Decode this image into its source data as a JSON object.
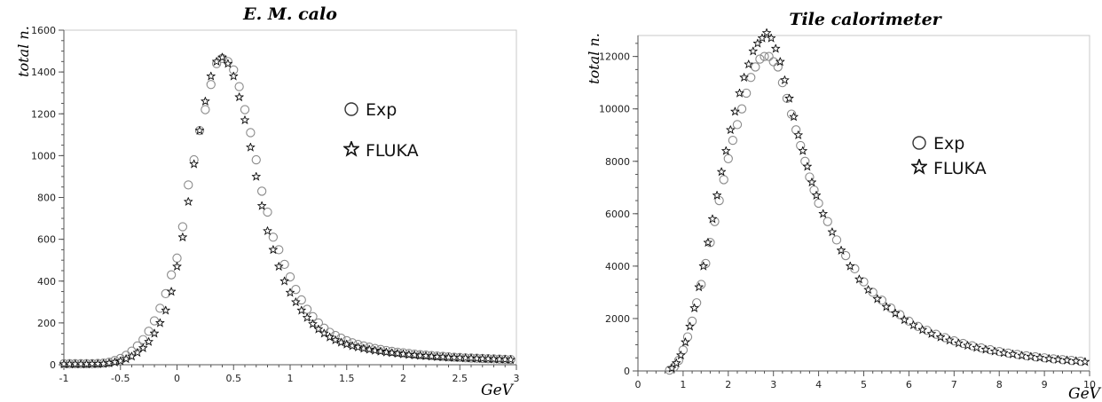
{
  "chart_data": [
    {
      "type": "scatter",
      "title": "E. M. calo",
      "xlabel": "GeV",
      "ylabel": "total n.",
      "xlim": [
        -1,
        3
      ],
      "ylim": [
        0,
        1600
      ],
      "xticks": [
        "-1",
        "-0.5",
        "0",
        "0.5",
        "1",
        "1.5",
        "2",
        "2.5",
        "3"
      ],
      "yticks": [
        "0",
        "200",
        "400",
        "600",
        "800",
        "1000",
        "1200",
        "1400",
        "1600"
      ],
      "legend_position": "right",
      "series": [
        {
          "name": "Exp",
          "marker": "circle",
          "x": [
            -1.0,
            -0.95,
            -0.9,
            -0.85,
            -0.8,
            -0.75,
            -0.7,
            -0.65,
            -0.6,
            -0.55,
            -0.5,
            -0.45,
            -0.4,
            -0.35,
            -0.3,
            -0.25,
            -0.2,
            -0.15,
            -0.1,
            -0.05,
            0.0,
            0.05,
            0.1,
            0.15,
            0.2,
            0.25,
            0.3,
            0.35,
            0.4,
            0.45,
            0.5,
            0.55,
            0.6,
            0.65,
            0.7,
            0.75,
            0.8,
            0.85,
            0.9,
            0.95,
            1.0,
            1.05,
            1.1,
            1.15,
            1.2,
            1.25,
            1.3,
            1.35,
            1.4,
            1.45,
            1.5,
            1.55,
            1.6,
            1.65,
            1.7,
            1.75,
            1.8,
            1.85,
            1.9,
            1.95,
            2.0,
            2.05,
            2.1,
            2.15,
            2.2,
            2.25,
            2.3,
            2.35,
            2.4,
            2.45,
            2.5,
            2.55,
            2.6,
            2.65,
            2.7,
            2.75,
            2.8,
            2.85,
            2.9,
            2.95
          ],
          "y": [
            5,
            5,
            5,
            5,
            5,
            5,
            6,
            8,
            12,
            20,
            30,
            45,
            65,
            90,
            120,
            160,
            210,
            270,
            340,
            430,
            510,
            660,
            860,
            980,
            1120,
            1220,
            1340,
            1440,
            1465,
            1450,
            1410,
            1330,
            1220,
            1110,
            980,
            830,
            730,
            610,
            550,
            480,
            420,
            360,
            310,
            265,
            230,
            200,
            175,
            155,
            140,
            127,
            115,
            105,
            97,
            90,
            84,
            78,
            73,
            68,
            64,
            60,
            57,
            54,
            51,
            48,
            46,
            44,
            42,
            40,
            38,
            36,
            35,
            33,
            32,
            31,
            30,
            29,
            28,
            27,
            26,
            25
          ]
        },
        {
          "name": "FLUKA",
          "marker": "star",
          "x": [
            -1.0,
            -0.95,
            -0.9,
            -0.85,
            -0.8,
            -0.75,
            -0.7,
            -0.65,
            -0.6,
            -0.55,
            -0.5,
            -0.45,
            -0.4,
            -0.35,
            -0.3,
            -0.25,
            -0.2,
            -0.15,
            -0.1,
            -0.05,
            0.0,
            0.05,
            0.1,
            0.15,
            0.2,
            0.25,
            0.3,
            0.35,
            0.4,
            0.45,
            0.5,
            0.55,
            0.6,
            0.65,
            0.7,
            0.75,
            0.8,
            0.85,
            0.9,
            0.95,
            1.0,
            1.05,
            1.1,
            1.15,
            1.2,
            1.25,
            1.3,
            1.35,
            1.4,
            1.45,
            1.5,
            1.55,
            1.6,
            1.65,
            1.7,
            1.75,
            1.8,
            1.85,
            1.9,
            1.95,
            2.0,
            2.05,
            2.1,
            2.15,
            2.2,
            2.25,
            2.3,
            2.35,
            2.4,
            2.45,
            2.5,
            2.55,
            2.6,
            2.65,
            2.7,
            2.75,
            2.8,
            2.85,
            2.9,
            2.95
          ],
          "y": [
            3,
            3,
            3,
            3,
            3,
            4,
            4,
            5,
            8,
            12,
            18,
            28,
            40,
            58,
            80,
            110,
            150,
            200,
            260,
            350,
            470,
            610,
            780,
            960,
            1120,
            1260,
            1380,
            1450,
            1470,
            1440,
            1380,
            1280,
            1170,
            1040,
            900,
            760,
            640,
            550,
            470,
            400,
            345,
            300,
            260,
            225,
            195,
            170,
            150,
            132,
            118,
            107,
            98,
            90,
            84,
            78,
            73,
            68,
            64,
            60,
            57,
            54,
            51,
            48,
            46,
            44,
            42,
            40,
            38,
            37,
            35,
            34,
            33,
            32,
            31,
            30,
            29,
            28,
            27,
            26,
            25,
            24
          ]
        }
      ]
    },
    {
      "type": "scatter",
      "title": "Tile calorimeter",
      "xlabel": "GeV",
      "ylabel": "total n.",
      "xlim": [
        0,
        10
      ],
      "ylim": [
        0,
        12800
      ],
      "xticks": [
        "0",
        "1",
        "2",
        "3",
        "4",
        "5",
        "6",
        "7",
        "8",
        "9",
        "10"
      ],
      "yticks": [
        "0",
        "2000",
        "4000",
        "6000",
        "8000",
        "10000",
        "12000"
      ],
      "legend_position": "right",
      "series": [
        {
          "name": "Exp",
          "marker": "circle",
          "x": [
            0.7,
            0.8,
            0.9,
            1.0,
            1.1,
            1.2,
            1.3,
            1.4,
            1.5,
            1.6,
            1.7,
            1.8,
            1.9,
            2.0,
            2.1,
            2.2,
            2.3,
            2.4,
            2.5,
            2.6,
            2.7,
            2.8,
            2.9,
            3.0,
            3.1,
            3.2,
            3.3,
            3.4,
            3.5,
            3.6,
            3.7,
            3.8,
            3.9,
            4.0,
            4.2,
            4.4,
            4.6,
            4.8,
            5.0,
            5.2,
            5.4,
            5.6,
            5.8,
            6.0,
            6.2,
            6.4,
            6.6,
            6.8,
            7.0,
            7.2,
            7.4,
            7.6,
            7.8,
            8.0,
            8.2,
            8.4,
            8.6,
            8.8,
            9.0,
            9.2,
            9.4,
            9.6,
            9.8
          ],
          "y": [
            30,
            150,
            400,
            800,
            1300,
            1900,
            2600,
            3300,
            4100,
            4900,
            5700,
            6500,
            7300,
            8100,
            8800,
            9400,
            10000,
            10600,
            11200,
            11600,
            11900,
            12000,
            12000,
            11800,
            11600,
            11000,
            10400,
            9800,
            9200,
            8600,
            8000,
            7400,
            6900,
            6400,
            5700,
            5000,
            4400,
            3900,
            3400,
            3000,
            2700,
            2400,
            2150,
            1900,
            1700,
            1550,
            1400,
            1270,
            1150,
            1050,
            960,
            880,
            810,
            740,
            680,
            630,
            580,
            540,
            500,
            460,
            430,
            400,
            370
          ]
        },
        {
          "name": "FLUKA",
          "marker": "star",
          "x": [
            0.75,
            0.85,
            0.95,
            1.05,
            1.15,
            1.25,
            1.35,
            1.45,
            1.55,
            1.65,
            1.75,
            1.85,
            1.95,
            2.05,
            2.15,
            2.25,
            2.35,
            2.45,
            2.55,
            2.65,
            2.75,
            2.85,
            2.95,
            3.05,
            3.15,
            3.25,
            3.35,
            3.45,
            3.55,
            3.65,
            3.75,
            3.85,
            3.95,
            4.1,
            4.3,
            4.5,
            4.7,
            4.9,
            5.1,
            5.3,
            5.5,
            5.7,
            5.9,
            6.1,
            6.3,
            6.5,
            6.7,
            6.9,
            7.1,
            7.3,
            7.5,
            7.7,
            7.9,
            8.1,
            8.3,
            8.5,
            8.7,
            8.9,
            9.1,
            9.3,
            9.5,
            9.7,
            9.9
          ],
          "y": [
            100,
            300,
            600,
            1100,
            1700,
            2400,
            3200,
            4000,
            4900,
            5800,
            6700,
            7600,
            8400,
            9200,
            9900,
            10600,
            11200,
            11700,
            12200,
            12500,
            12700,
            12900,
            12700,
            12300,
            11800,
            11100,
            10400,
            9700,
            9000,
            8400,
            7800,
            7200,
            6700,
            6000,
            5300,
            4600,
            4000,
            3500,
            3100,
            2750,
            2450,
            2200,
            1950,
            1750,
            1570,
            1420,
            1290,
            1170,
            1060,
            970,
            890,
            820,
            750,
            690,
            640,
            590,
            550,
            510,
            470,
            440,
            410,
            380,
            350
          ]
        }
      ]
    }
  ]
}
